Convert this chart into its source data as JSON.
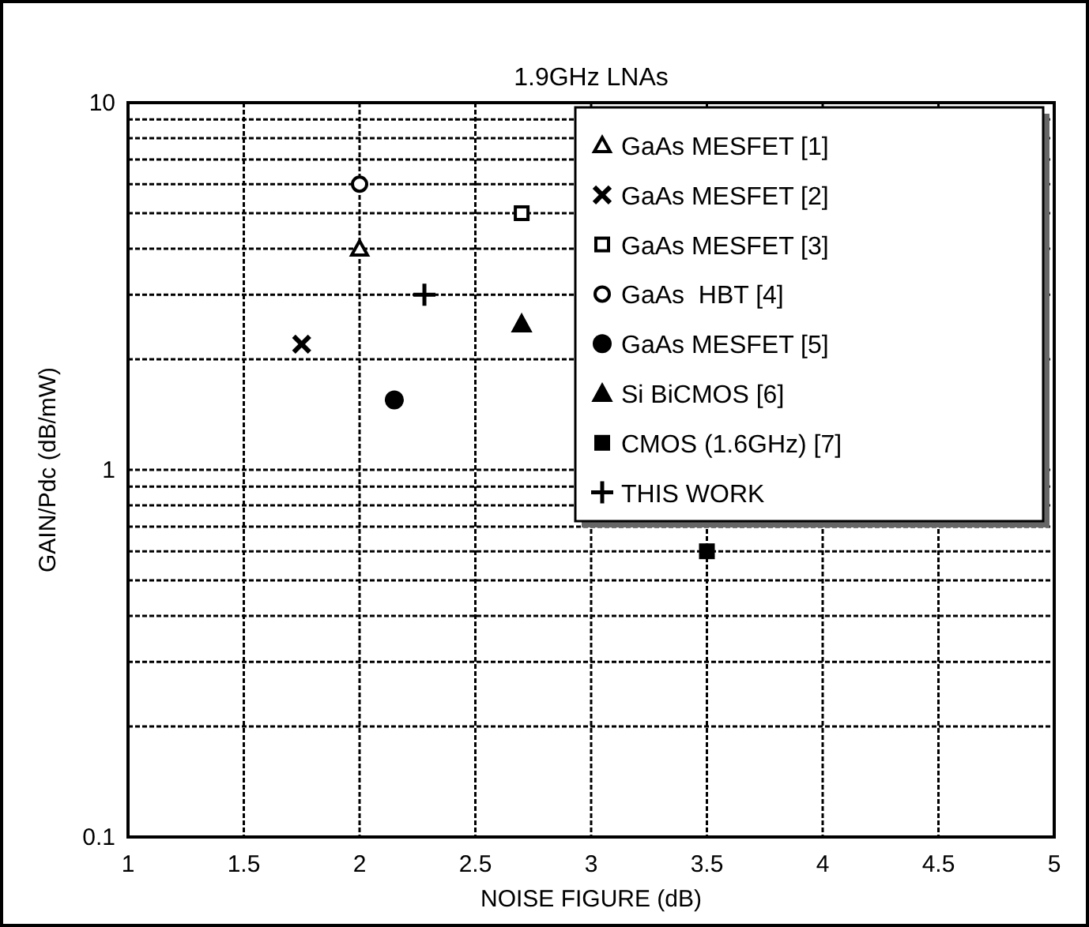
{
  "chart_data": {
    "type": "scatter",
    "title": "1.9GHz LNAs",
    "xlabel": "NOISE FIGURE (dB)",
    "ylabel": "GAIN/Pdc (dB/mW)",
    "log": "y",
    "grid": true,
    "legend": "top right",
    "xlim": [
      1,
      5
    ],
    "xticks": [
      1,
      1.5,
      2,
      2.5,
      3,
      3.5,
      4,
      4.5,
      5
    ],
    "ylim": [
      0.1,
      10
    ],
    "yticks": [
      0.1,
      {
        "value": 0.2,
        "label": null
      },
      {
        "value": 0.3,
        "label": null
      },
      {
        "value": 0.4,
        "label": null
      },
      {
        "value": 0.5,
        "label": null
      },
      {
        "value": 0.6,
        "label": null
      },
      {
        "value": 0.7,
        "label": null
      },
      {
        "value": 0.8,
        "label": null
      },
      {
        "value": 0.9,
        "label": null
      },
      1,
      {
        "value": 2,
        "label": null
      },
      {
        "value": 3,
        "label": null
      },
      {
        "value": 4,
        "label": null
      },
      {
        "value": 5,
        "label": null
      },
      {
        "value": 6,
        "label": null
      },
      {
        "value": 7,
        "label": null
      },
      {
        "value": 8,
        "label": null
      },
      {
        "value": 9,
        "label": null
      },
      10
    ],
    "series": [
      {
        "name": "GaAs MESFET [1]",
        "color": "#000000",
        "marker": "triangle-open",
        "x": [
          2.0
        ],
        "values": [
          4
        ]
      },
      {
        "name": "GaAs MESFET [2]",
        "color": "#000000",
        "marker": "x",
        "x": [
          1.75
        ],
        "values": [
          2.2
        ]
      },
      {
        "name": "GaAs MESFET [3]",
        "color": "#000000",
        "marker": "square-open",
        "x": [
          2.7
        ],
        "values": [
          5
        ]
      },
      {
        "name": "GaAs  HBT [4]",
        "color": "#000000",
        "marker": "circle-open",
        "x": [
          2.0
        ],
        "values": [
          6
        ]
      },
      {
        "name": "GaAs MESFET [5]",
        "color": "#000000",
        "marker": "circle",
        "x": [
          2.15
        ],
        "values": [
          1.55
        ]
      },
      {
        "name": "Si BiCMOS [6]",
        "color": "#000000",
        "marker": "triangle",
        "x": [
          2.7
        ],
        "values": [
          2.5
        ]
      },
      {
        "name": "CMOS (1.6GHz) [7]",
        "color": "#000000",
        "marker": "square",
        "x": [
          3.5
        ],
        "values": [
          0.6
        ]
      },
      {
        "name": "THIS WORK",
        "color": "#000000",
        "marker": "plus",
        "x": [
          2.28
        ],
        "values": [
          3
        ]
      }
    ]
  }
}
